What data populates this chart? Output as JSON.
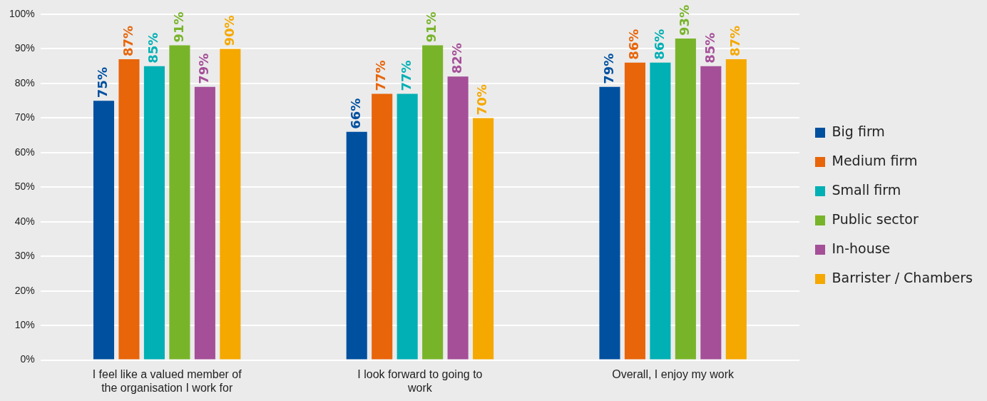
{
  "chart_data": {
    "type": "bar",
    "categories": [
      "I feel like a valued member of the organisation I work for",
      "I look forward to going to work",
      "Overall, I enjoy my work"
    ],
    "series": [
      {
        "name": "Big firm",
        "color": "#0050a0",
        "values": [
          75,
          66,
          79
        ]
      },
      {
        "name": "Medium firm",
        "color": "#e8650a",
        "values": [
          87,
          77,
          86
        ]
      },
      {
        "name": "Small firm",
        "color": "#00b0b4",
        "values": [
          85,
          77,
          86
        ]
      },
      {
        "name": "Public sector",
        "color": "#78b42a",
        "values": [
          91,
          91,
          93
        ]
      },
      {
        "name": "In-house",
        "color": "#a54f98",
        "values": [
          79,
          82,
          85
        ]
      },
      {
        "name": "Barrister / Chambers",
        "color": "#f5a800",
        "values": [
          90,
          70,
          87
        ]
      }
    ],
    "value_labels": [
      [
        "75%",
        "66%",
        "79%"
      ],
      [
        "87%",
        "77%",
        "86%"
      ],
      [
        "85%",
        "77%",
        "86%"
      ],
      [
        "91%",
        "91%",
        "93%"
      ],
      [
        "79%",
        "82%",
        "85%"
      ],
      [
        "90%",
        "70%",
        "87%"
      ]
    ],
    "ylim": [
      0,
      100
    ],
    "yticks": [
      {
        "value": 0,
        "label": "0%"
      },
      {
        "value": 10,
        "label": "10%"
      },
      {
        "value": 20,
        "label": "20%"
      },
      {
        "value": 30,
        "label": "30%"
      },
      {
        "value": 40,
        "label": "40%"
      },
      {
        "value": 50,
        "label": "50%"
      },
      {
        "value": 60,
        "label": "60%"
      },
      {
        "value": 70,
        "label": "70%"
      },
      {
        "value": 80,
        "label": "80%"
      },
      {
        "value": 90,
        "label": "90%"
      },
      {
        "value": 100,
        "label": "100%"
      }
    ],
    "grid": "y",
    "legend": "right"
  }
}
